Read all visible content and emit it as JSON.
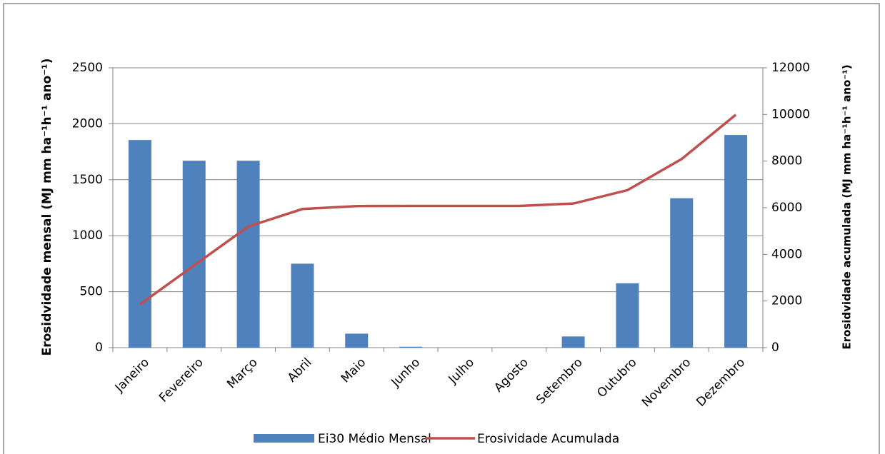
{
  "chart_data": {
    "type": "bar",
    "categories": [
      "Janeiro",
      "Fevereiro",
      "Março",
      "Abril",
      "Maio",
      "Junho",
      "Julho",
      "Agosto",
      "Setembro",
      "Outubro",
      "Novembro",
      "Dezembro"
    ],
    "y_label": "Erosidvidade mensal (MJ mm ha⁻¹h⁻¹ ano⁻¹)",
    "y2_label": "Erosidvidade acumulada (MJ mm ha⁻¹h⁻¹ ano⁻¹)",
    "series": [
      {
        "name": "Ei30 Médio Mensal",
        "type": "bar",
        "color": "#4f81bd",
        "values": [
          1855,
          1670,
          1670,
          750,
          125,
          8,
          0,
          0,
          100,
          575,
          1335,
          1900
        ]
      },
      {
        "name": "Erosividade Acumulada",
        "type": "line",
        "axis": "y2",
        "color": "#c0504d",
        "values": [
          1855,
          3525,
          5195,
          5945,
          6070,
          6078,
          6078,
          6078,
          6178,
          6753,
          8088,
          9988
        ]
      }
    ],
    "ylim": [
      0,
      2500
    ],
    "yticks": [
      0,
      500,
      1000,
      1500,
      2000,
      2500
    ],
    "y2lim": [
      0,
      12000
    ],
    "y2ticks": [
      0,
      2000,
      4000,
      6000,
      8000,
      10000,
      12000
    ],
    "grid": true,
    "legend": "bottom"
  }
}
